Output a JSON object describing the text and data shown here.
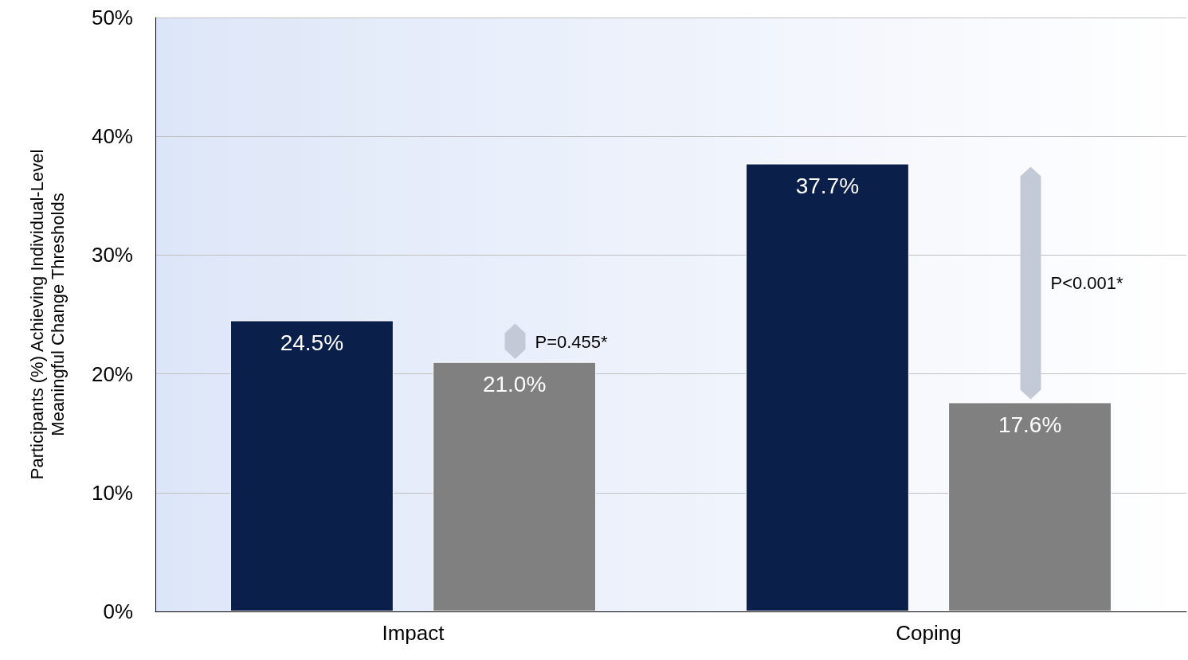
{
  "chart_data": {
    "type": "bar",
    "ylabel": "Participants (%) Achieving Individual-Level Meaningful Change Thresholds",
    "categories": [
      "Impact",
      "Coping"
    ],
    "series": [
      {
        "color": "#0a1f4a",
        "values": [
          24.5,
          37.7
        ],
        "value_labels": [
          "24.5%",
          "37.7%"
        ]
      },
      {
        "color": "#808080",
        "values": [
          21.0,
          17.6
        ],
        "value_labels": [
          "21.0%",
          "17.6%"
        ]
      }
    ],
    "ylim": [
      0,
      50
    ],
    "yticks": [
      {
        "value": 0,
        "label": "0%"
      },
      {
        "value": 10,
        "label": "10%"
      },
      {
        "value": 20,
        "label": "20%"
      },
      {
        "value": 30,
        "label": "30%"
      },
      {
        "value": 40,
        "label": "40%"
      },
      {
        "value": 50,
        "label": "50%"
      }
    ],
    "grid": "y",
    "annotations": [
      "P=0.455*",
      "P<0.001*"
    ]
  }
}
